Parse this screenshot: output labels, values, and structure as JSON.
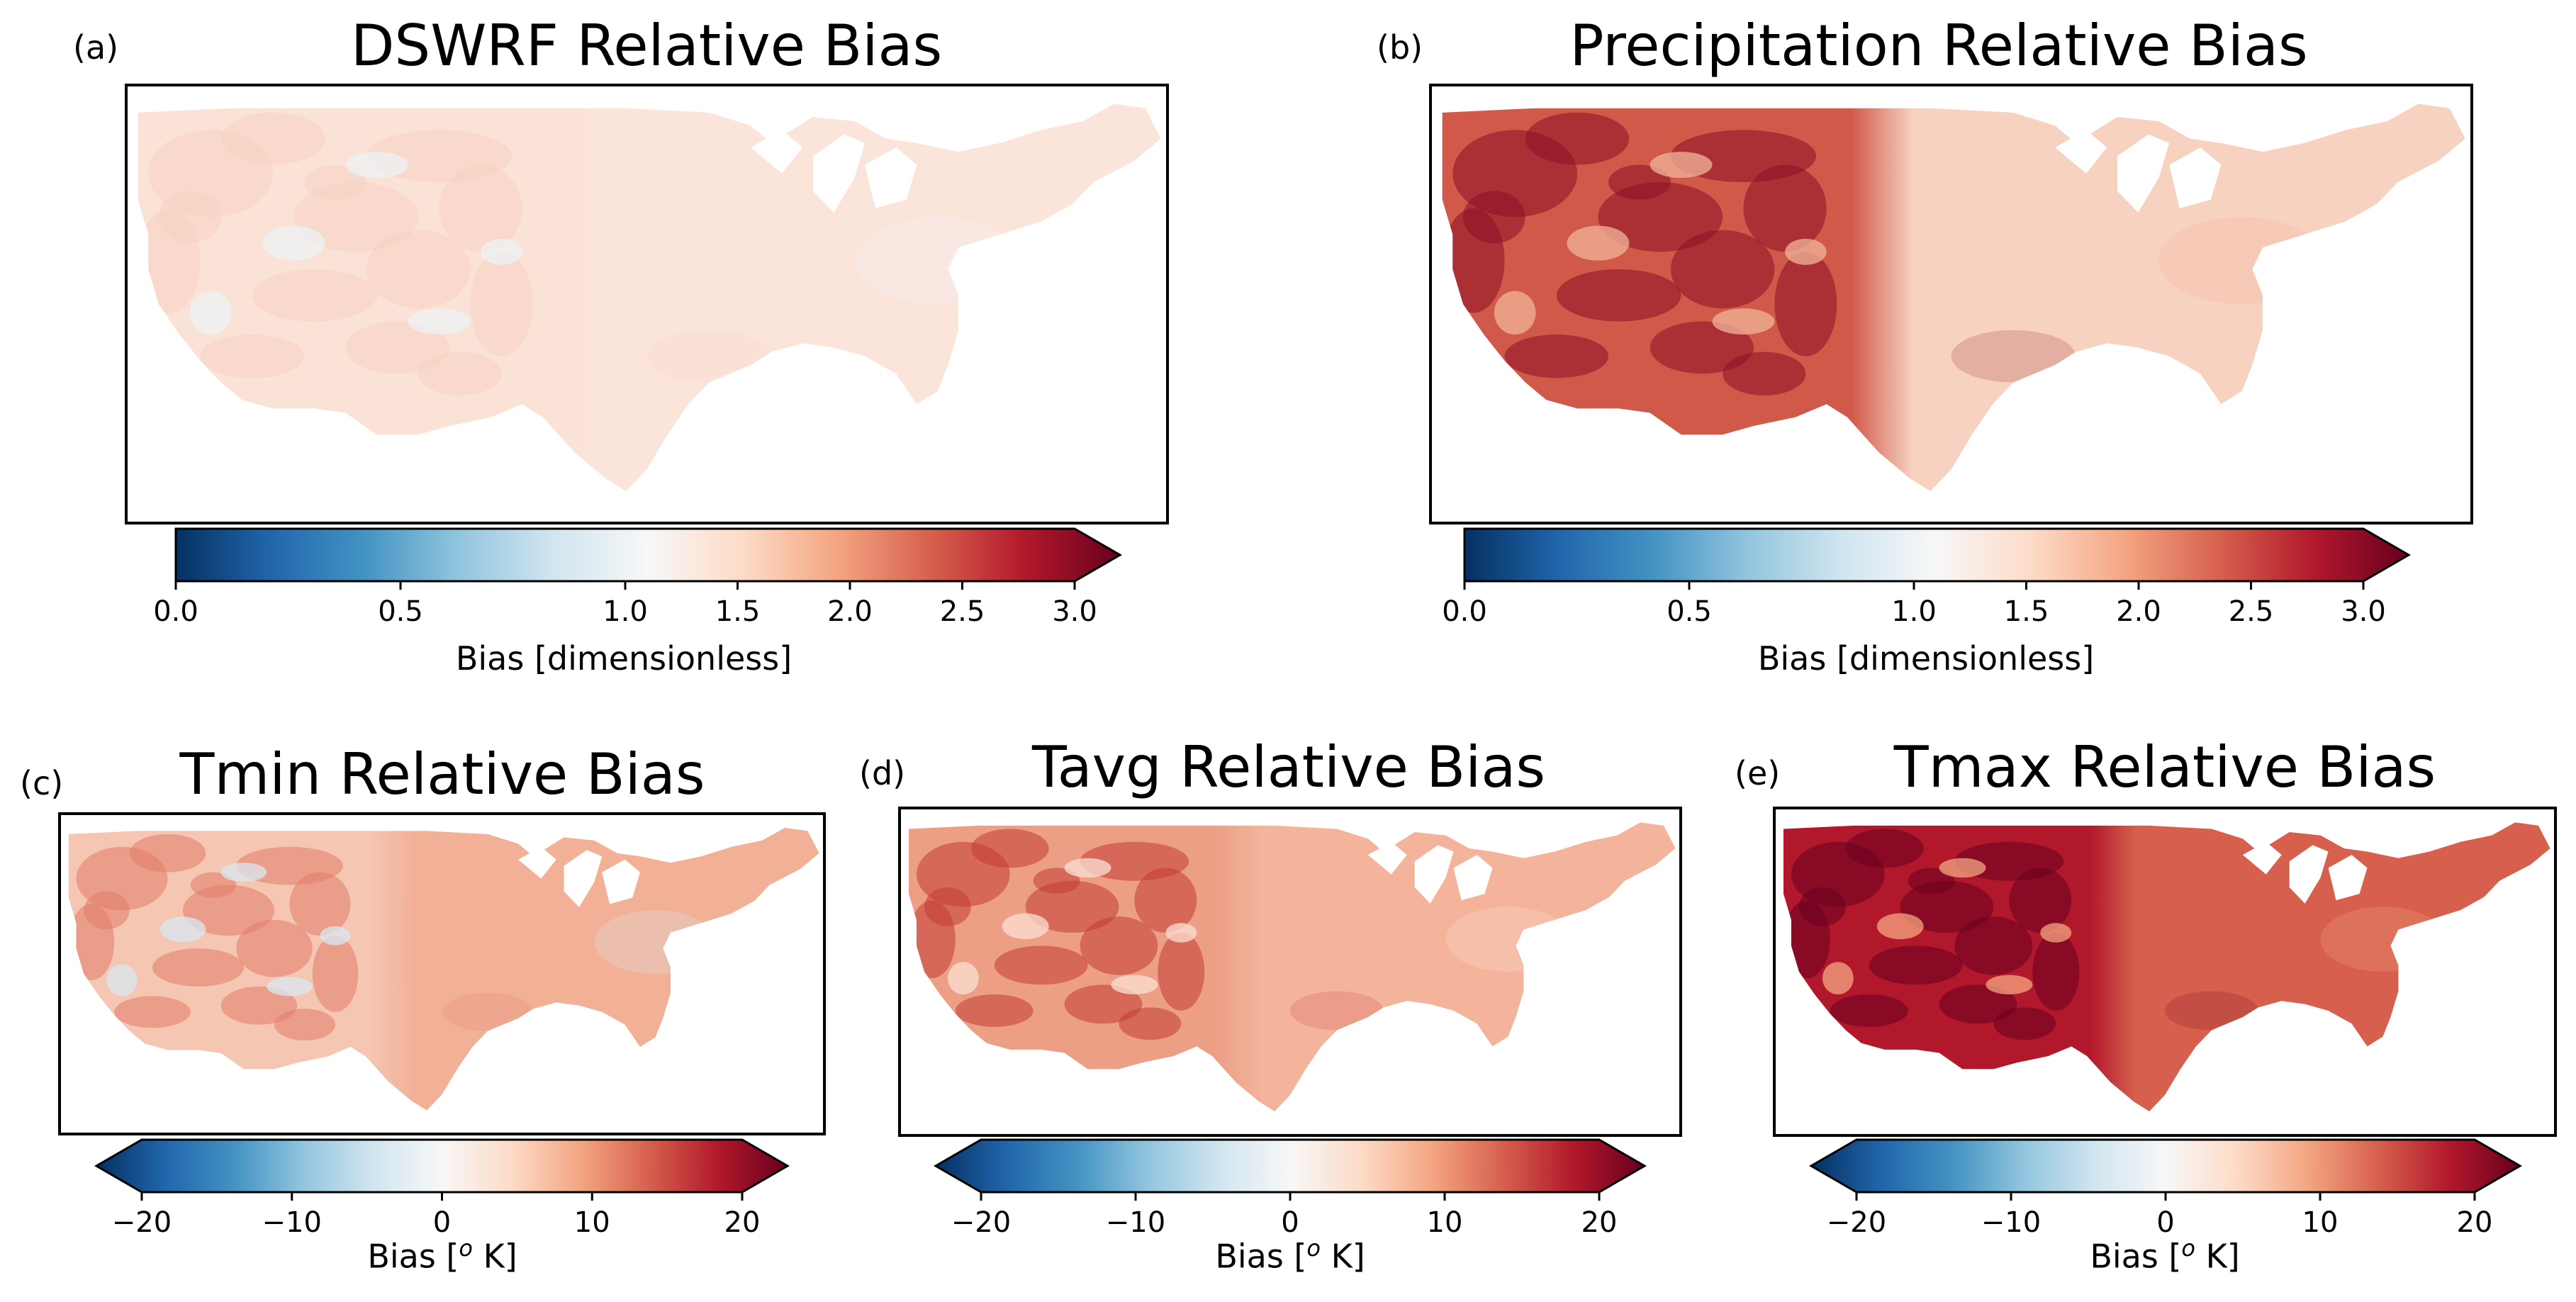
{
  "colormap_stops": [
    "#053061",
    "#2166ac",
    "#4393c3",
    "#92c5de",
    "#d1e5f0",
    "#f7f7f7",
    "#fddbc7",
    "#f4a582",
    "#d6604d",
    "#b2182b",
    "#67001f"
  ],
  "panels": {
    "a": {
      "letter": "(a)",
      "title": "DSWRF Relative Bias",
      "colorbar_label": "Bias [dimensionless]",
      "ticks": [
        "0.0",
        "0.5",
        "1.0",
        "1.5",
        "2.0",
        "2.5",
        "3.0"
      ],
      "map_fill": {
        "west": "#fbe2d6",
        "east": "#fbe4da",
        "detail": "#f6d2c2",
        "patch": "#eef2f6"
      }
    },
    "b": {
      "letter": "(b)",
      "title": "Precipitation Relative Bias",
      "colorbar_label": "Bias [dimensionless]",
      "ticks": [
        "0.0",
        "0.5",
        "1.0",
        "1.5",
        "2.0",
        "2.5",
        "3.0"
      ],
      "map_fill": {
        "west": "#d1594a",
        "east": "#f7d2c0",
        "detail": "#8a0f24",
        "patch": "#f2b49a"
      }
    },
    "c": {
      "letter": "(c)",
      "title": "Tmin Relative Bias",
      "colorbar_label_prefix": "Bias [",
      "colorbar_label_sup": "o",
      "colorbar_label_suffix": " K]",
      "ticks": [
        "−20",
        "−10",
        "0",
        "10",
        "20"
      ],
      "map_fill": {
        "west": "#f5c6b2",
        "east": "#f2b197",
        "detail": "#e07c68",
        "patch": "#d8e8f2"
      }
    },
    "d": {
      "letter": "(d)",
      "title": "Tavg Relative Bias",
      "colorbar_label_prefix": "Bias [",
      "colorbar_label_sup": "o",
      "colorbar_label_suffix": " K]",
      "ticks": [
        "−20",
        "−10",
        "0",
        "10",
        "20"
      ],
      "map_fill": {
        "west": "#ec9f85",
        "east": "#f3b49b",
        "detail": "#c53a35",
        "patch": "#fbe0d4"
      }
    },
    "e": {
      "letter": "(e)",
      "title": "Tmax Relative Bias",
      "colorbar_label_prefix": "Bias [",
      "colorbar_label_sup": "o",
      "colorbar_label_suffix": " K]",
      "ticks": [
        "−20",
        "−10",
        "0",
        "10",
        "20"
      ],
      "map_fill": {
        "west": "#b2182b",
        "east": "#d6604d",
        "detail": "#67001f",
        "patch": "#f4a582"
      }
    }
  }
}
